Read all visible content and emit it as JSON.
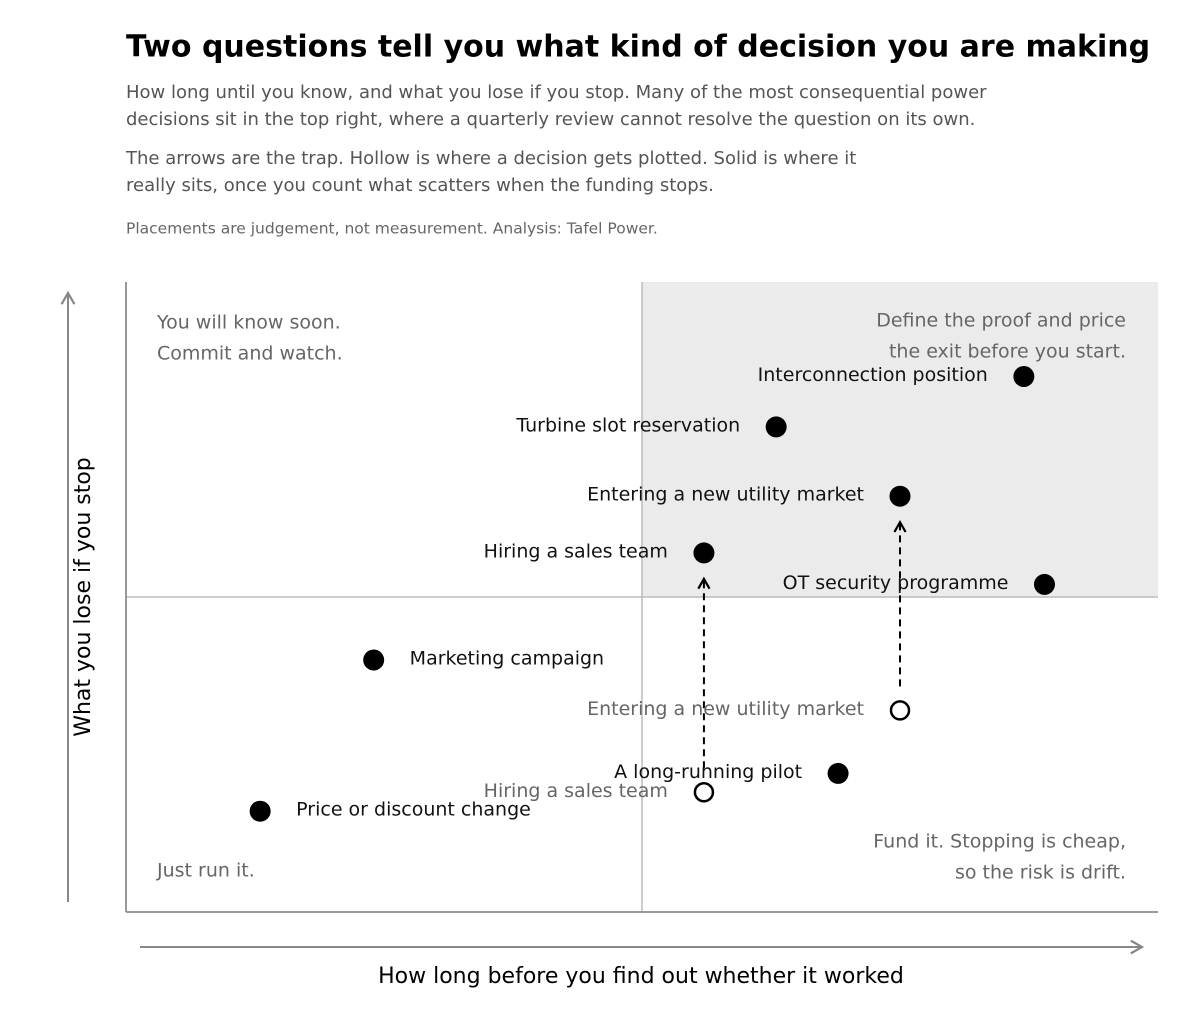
{
  "chart_data": {
    "type": "scatter",
    "title": "Two questions tell you what kind of decision you are making",
    "subtitle": [
      [
        "How long until you know, and what you lose if you stop. Many of the most consequential power",
        "decisions sit in the top right, where a quarterly review cannot resolve the question on its own."
      ],
      [
        "The arrows are the trap. Hollow is where a decision gets plotted. Solid is where it",
        "really sits, once you count what scatters when the funding stops."
      ]
    ],
    "note": "Placements are judgement, not measurement. Analysis: Tafel Power.",
    "x_label": "How long before you find out whether it worked",
    "y_label": "What you lose if you stop",
    "xlim": [
      0,
      10
    ],
    "ylim": [
      0,
      10
    ],
    "dividers": {
      "x": 5,
      "y": 5
    },
    "highlight_quadrant": "top-right",
    "quadrant_labels": {
      "top-left": [
        "You will know soon.",
        "Commit and watch."
      ],
      "top-right": [
        "Define the proof and price",
        "the exit before you start."
      ],
      "bottom-right": [
        "Fund it. Stopping is cheap,",
        "so the risk is drift."
      ],
      "bottom-left": [
        "Just run it."
      ]
    },
    "points": [
      {
        "label": "Interconnection position",
        "x": 8.7,
        "y": 8.5,
        "style": "solid"
      },
      {
        "label": "Turbine slot reservation",
        "x": 6.3,
        "y": 7.7,
        "style": "solid"
      },
      {
        "label": "Entering a new utility market",
        "x": 7.5,
        "y": 6.6,
        "style": "solid"
      },
      {
        "label": "Hiring a sales team",
        "x": 5.6,
        "y": 5.7,
        "style": "solid"
      },
      {
        "label": "OT security programme",
        "x": 8.9,
        "y": 5.2,
        "style": "solid"
      },
      {
        "label": "Marketing campaign",
        "x": 2.4,
        "y": 4.0,
        "style": "solid"
      },
      {
        "label": "Entering a new utility market",
        "x": 7.5,
        "y": 3.2,
        "style": "hollow"
      },
      {
        "label": "A long-running pilot",
        "x": 6.9,
        "y": 2.2,
        "style": "solid"
      },
      {
        "label": "Hiring a sales team",
        "x": 5.6,
        "y": 1.9,
        "style": "hollow"
      },
      {
        "label": "Price or discount change",
        "x": 1.3,
        "y": 1.6,
        "style": "solid"
      }
    ]
  }
}
